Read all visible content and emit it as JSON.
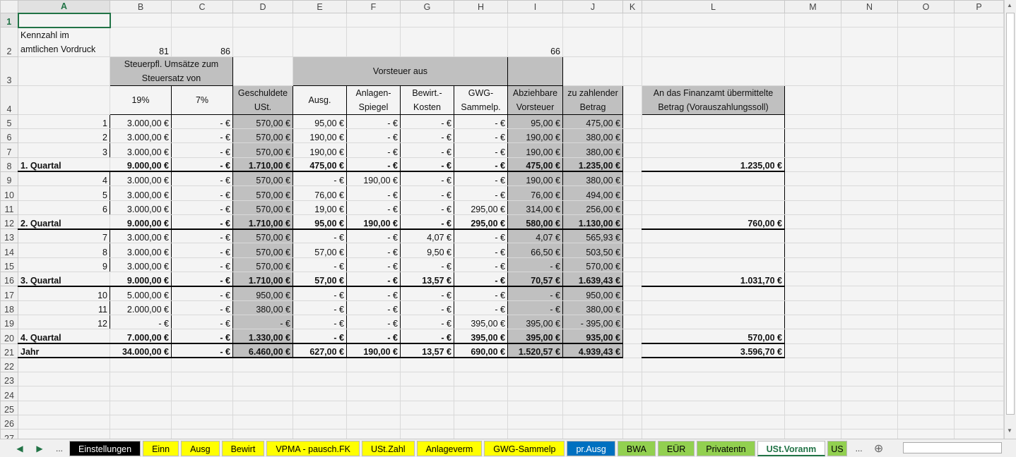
{
  "columns": [
    "A",
    "B",
    "C",
    "D",
    "E",
    "F",
    "G",
    "H",
    "I",
    "J",
    "K",
    "L",
    "M",
    "N",
    "O",
    "P"
  ],
  "row2": {
    "label_line1": "Kennzahl im",
    "label_line2": "amtlichen Vordruck",
    "b": "81",
    "c": "86",
    "i": "66"
  },
  "row3": {
    "umsaetze": "Steuerpfl. Umsätze zum Steuersatz von",
    "vorsteuer": "Vorsteuer aus"
  },
  "row4": {
    "b": "19%",
    "c": "7%",
    "d": "Geschuldete USt.",
    "e": "Ausg.",
    "f": "Anlagen-Spiegel",
    "g": "Bewirt.-Kosten",
    "h": "GWG-Sammelp.",
    "i": "Abziehbare Vorsteuer",
    "j": "zu zahlender Betrag",
    "l": "An das Finanzamt übermittelte Betrag (Vorauszahlungssoll)"
  },
  "rows": [
    {
      "n": 5,
      "cells": [
        "1",
        "3.000,00 €",
        "-  €",
        "570,00 €",
        "95,00 €",
        "-  €",
        "-  €",
        "-  €",
        "95,00 €",
        "475,00 €",
        ""
      ]
    },
    {
      "n": 6,
      "cells": [
        "2",
        "3.000,00 €",
        "-  €",
        "570,00 €",
        "190,00 €",
        "-  €",
        "-  €",
        "-  €",
        "190,00 €",
        "380,00 €",
        ""
      ]
    },
    {
      "n": 7,
      "cells": [
        "3",
        "3.000,00 €",
        "-  €",
        "570,00 €",
        "190,00 €",
        "-  €",
        "-  €",
        "-  €",
        "190,00 €",
        "380,00 €",
        ""
      ]
    },
    {
      "n": 8,
      "sum": true,
      "cells": [
        "1. Quartal",
        "9.000,00 €",
        "-  €",
        "1.710,00 €",
        "475,00 €",
        "-  €",
        "-  €",
        "-  €",
        "475,00 €",
        "1.235,00 €",
        "1.235,00 €"
      ]
    },
    {
      "n": 9,
      "cells": [
        "4",
        "3.000,00 €",
        "-  €",
        "570,00 €",
        "-  €",
        "190,00 €",
        "-  €",
        "-  €",
        "190,00 €",
        "380,00 €",
        ""
      ]
    },
    {
      "n": 10,
      "cells": [
        "5",
        "3.000,00 €",
        "-  €",
        "570,00 €",
        "76,00 €",
        "-  €",
        "-  €",
        "-  €",
        "76,00 €",
        "494,00 €",
        ""
      ]
    },
    {
      "n": 11,
      "cells": [
        "6",
        "3.000,00 €",
        "-  €",
        "570,00 €",
        "19,00 €",
        "-  €",
        "-  €",
        "295,00 €",
        "314,00 €",
        "256,00 €",
        ""
      ]
    },
    {
      "n": 12,
      "sum": true,
      "cells": [
        "2. Quartal",
        "9.000,00 €",
        "-  €",
        "1.710,00 €",
        "95,00 €",
        "190,00 €",
        "-  €",
        "295,00 €",
        "580,00 €",
        "1.130,00 €",
        "760,00 €"
      ]
    },
    {
      "n": 13,
      "cells": [
        "7",
        "3.000,00 €",
        "-  €",
        "570,00 €",
        "-  €",
        "-  €",
        "4,07 €",
        "-  €",
        "4,07 €",
        "565,93 €",
        ""
      ]
    },
    {
      "n": 14,
      "cells": [
        "8",
        "3.000,00 €",
        "-  €",
        "570,00 €",
        "57,00 €",
        "-  €",
        "9,50 €",
        "-  €",
        "66,50 €",
        "503,50 €",
        ""
      ]
    },
    {
      "n": 15,
      "cells": [
        "9",
        "3.000,00 €",
        "-  €",
        "570,00 €",
        "-  €",
        "-  €",
        "-  €",
        "-  €",
        "-  €",
        "570,00 €",
        ""
      ]
    },
    {
      "n": 16,
      "sum": true,
      "cells": [
        "3. Quartal",
        "9.000,00 €",
        "-  €",
        "1.710,00 €",
        "57,00 €",
        "-  €",
        "13,57 €",
        "-  €",
        "70,57 €",
        "1.639,43 €",
        "1.031,70 €"
      ]
    },
    {
      "n": 17,
      "cells": [
        "10",
        "5.000,00 €",
        "-  €",
        "950,00 €",
        "-  €",
        "-  €",
        "-  €",
        "-  €",
        "-  €",
        "950,00 €",
        ""
      ]
    },
    {
      "n": 18,
      "cells": [
        "11",
        "2.000,00 €",
        "-  €",
        "380,00 €",
        "-  €",
        "-  €",
        "-  €",
        "-  €",
        "-  €",
        "380,00 €",
        ""
      ]
    },
    {
      "n": 19,
      "cells": [
        "12",
        "-  €",
        "-  €",
        "-  €",
        "-  €",
        "-  €",
        "-  €",
        "395,00 €",
        "395,00 €",
        "-      395,00 €",
        ""
      ]
    },
    {
      "n": 20,
      "sum": true,
      "cells": [
        "4. Quartal",
        "7.000,00 €",
        "-  €",
        "1.330,00 €",
        "-  €",
        "-  €",
        "-  €",
        "395,00 €",
        "395,00 €",
        "935,00 €",
        "570,00 €"
      ]
    },
    {
      "n": 21,
      "sum": true,
      "cells": [
        "Jahr",
        "34.000,00 €",
        "-  €",
        "6.460,00 €",
        "627,00 €",
        "190,00 €",
        "13,57 €",
        "690,00 €",
        "1.520,57 €",
        "4.939,43 €",
        "3.596,70 €"
      ]
    }
  ],
  "empty_rows": [
    22,
    23,
    24,
    25,
    26,
    27
  ],
  "tabs": [
    {
      "label": "Einstellungen",
      "bg": "#000000",
      "fg": "#ffffff"
    },
    {
      "label": "Einn",
      "bg": "#ffff00",
      "fg": "#000000"
    },
    {
      "label": "Ausg",
      "bg": "#ffff00",
      "fg": "#000000"
    },
    {
      "label": "Bewirt",
      "bg": "#ffff00",
      "fg": "#000000"
    },
    {
      "label": "VPMA - pausch.FK",
      "bg": "#ffff00",
      "fg": "#000000"
    },
    {
      "label": "USt.Zahl",
      "bg": "#ffff00",
      "fg": "#000000"
    },
    {
      "label": "Anlageverm",
      "bg": "#ffff00",
      "fg": "#000000"
    },
    {
      "label": "GWG-Sammelp",
      "bg": "#ffff00",
      "fg": "#000000"
    },
    {
      "label": "pr.Ausg",
      "bg": "#0070c0",
      "fg": "#ffffff"
    },
    {
      "label": "BWA",
      "bg": "#92d050",
      "fg": "#000000"
    },
    {
      "label": "EÜR",
      "bg": "#92d050",
      "fg": "#000000"
    },
    {
      "label": "Privatentn",
      "bg": "#92d050",
      "fg": "#000000"
    },
    {
      "label": "USt.Voranm",
      "bg": "#ffffff",
      "fg": "#217346",
      "active": true
    },
    {
      "label": "US",
      "bg": "#92d050",
      "fg": "#000000"
    }
  ],
  "nav": {
    "prev": "◀",
    "next": "▶",
    "more": "...",
    "more_right": "...",
    "add": "⊕"
  }
}
